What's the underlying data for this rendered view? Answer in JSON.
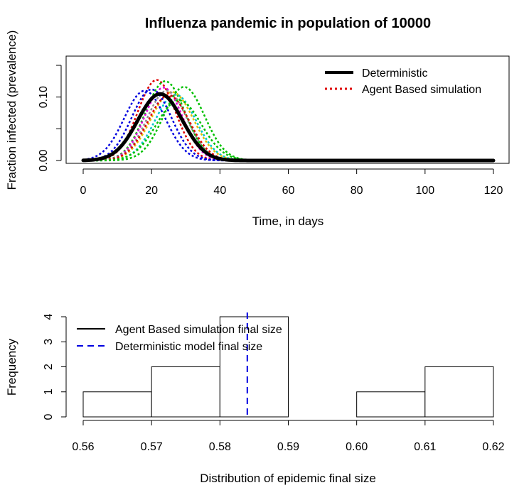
{
  "chart_data": [
    {
      "type": "line",
      "title": "Influenza pandemic in population of 10000",
      "xlabel": "Time, in days",
      "ylabel": "Fraction infected (prevalence)",
      "xlim": [
        0,
        120
      ],
      "ylim": [
        0,
        0.15
      ],
      "x_ticks": [
        0,
        20,
        40,
        60,
        80,
        100,
        120
      ],
      "x_tick_labels": [
        "0",
        "20",
        "40",
        "60",
        "80",
        "100",
        "120"
      ],
      "y_ticks": [
        0.0,
        0.05,
        0.1,
        0.15
      ],
      "y_tick_labels": [
        "0.00",
        "",
        "0.10",
        ""
      ],
      "legend": {
        "position": "top-right",
        "entries": [
          {
            "label": "Deterministic",
            "color": "#000000",
            "style": "solid"
          },
          {
            "label": "Agent Based simulation",
            "color": "#df0000",
            "style": "dotted"
          }
        ]
      },
      "deterministic": {
        "name": "Deterministic",
        "color": "#000000",
        "peak_day": 22.5,
        "peak": 0.105,
        "sigma": 6.5
      },
      "simulations": [
        {
          "color": "#df0000",
          "peak_day": 21.5,
          "peak": 0.127,
          "sigma": 5.5
        },
        {
          "color": "#00c000",
          "peak_day": 24.0,
          "peak": 0.125,
          "sigma": 5.8
        },
        {
          "color": "#0000e0",
          "peak_day": 18.0,
          "peak": 0.11,
          "sigma": 6.0
        },
        {
          "color": "#00c8c8",
          "peak_day": 27.0,
          "peak": 0.104,
          "sigma": 6.0
        },
        {
          "color": "#e000e0",
          "peak_day": 23.5,
          "peak": 0.115,
          "sigma": 5.5
        },
        {
          "color": "#e0c000",
          "peak_day": 26.0,
          "peak": 0.108,
          "sigma": 6.2
        },
        {
          "color": "#909090",
          "peak_day": 24.5,
          "peak": 0.11,
          "sigma": 5.8
        },
        {
          "color": "#df0000",
          "peak_day": 25.0,
          "peak": 0.103,
          "sigma": 6.0
        },
        {
          "color": "#00c000",
          "peak_day": 29.5,
          "peak": 0.116,
          "sigma": 6.0
        },
        {
          "color": "#0000e0",
          "peak_day": 20.0,
          "peak": 0.112,
          "sigma": 5.8
        },
        {
          "color": "#00c000",
          "peak_day": 28.0,
          "peak": 0.095,
          "sigma": 6.5
        }
      ]
    },
    {
      "type": "histogram",
      "xlabel": "Distribution of epidemic final size",
      "ylabel": "Frequency",
      "xlim": [
        0.56,
        0.62
      ],
      "ylim": [
        0,
        4
      ],
      "x_ticks": [
        0.56,
        0.57,
        0.58,
        0.59,
        0.6,
        0.61,
        0.62
      ],
      "x_tick_labels": [
        "0.56",
        "0.57",
        "0.58",
        "0.59",
        "0.60",
        "0.61",
        "0.62"
      ],
      "y_ticks": [
        0,
        1,
        2,
        3,
        4
      ],
      "y_tick_labels": [
        "0",
        "1",
        "2",
        "3",
        "4"
      ],
      "bins": [
        {
          "from": 0.56,
          "to": 0.57,
          "count": 1
        },
        {
          "from": 0.57,
          "to": 0.58,
          "count": 2
        },
        {
          "from": 0.58,
          "to": 0.59,
          "count": 4
        },
        {
          "from": 0.59,
          "to": 0.6,
          "count": 0
        },
        {
          "from": 0.6,
          "to": 0.61,
          "count": 1
        },
        {
          "from": 0.61,
          "to": 0.62,
          "count": 2
        }
      ],
      "deterministic_final_size": 0.584,
      "legend": {
        "position": "top-left",
        "entries": [
          {
            "label": "Agent Based simulation final size",
            "color": "#000000",
            "style": "solid"
          },
          {
            "label": "Deterministic model final size",
            "color": "#0000e0",
            "style": "dashed"
          }
        ]
      }
    }
  ]
}
